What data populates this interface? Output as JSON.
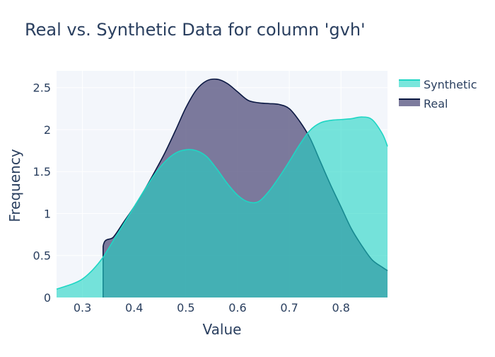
{
  "chart_data": {
    "type": "area",
    "title": "Real vs. Synthetic Data for column 'gvh'",
    "xlabel": "Value",
    "ylabel": "Frequency",
    "xlim": [
      0.25,
      0.89
    ],
    "ylim": [
      0,
      2.7
    ],
    "x_ticks": [
      0.3,
      0.4,
      0.5,
      0.6,
      0.7,
      0.8
    ],
    "x_tick_labels": [
      "0.3",
      "0.4",
      "0.5",
      "0.6",
      "0.7",
      "0.8"
    ],
    "y_ticks": [
      0,
      0.5,
      1,
      1.5,
      2,
      2.5
    ],
    "y_tick_labels": [
      "0",
      "0.5",
      "1",
      "1.5",
      "2",
      "2.5"
    ],
    "grid": true,
    "legend_position": "top-right",
    "series": [
      {
        "name": "Synthetic",
        "color": "#1fd6c4",
        "fill": "#1fd6c4",
        "x": [
          0.25,
          0.28,
          0.3,
          0.32,
          0.34,
          0.36,
          0.38,
          0.4,
          0.42,
          0.44,
          0.46,
          0.48,
          0.5,
          0.52,
          0.54,
          0.56,
          0.58,
          0.6,
          0.62,
          0.64,
          0.66,
          0.68,
          0.7,
          0.72,
          0.74,
          0.76,
          0.78,
          0.8,
          0.82,
          0.84,
          0.86,
          0.88,
          0.89
        ],
        "values": [
          0.1,
          0.16,
          0.22,
          0.33,
          0.48,
          0.68,
          0.88,
          1.08,
          1.28,
          1.47,
          1.62,
          1.72,
          1.76,
          1.75,
          1.68,
          1.53,
          1.36,
          1.22,
          1.14,
          1.14,
          1.26,
          1.43,
          1.62,
          1.82,
          1.99,
          2.08,
          2.11,
          2.12,
          2.13,
          2.15,
          2.12,
          1.95,
          1.8
        ]
      },
      {
        "name": "Real",
        "color": "#0d1a44",
        "fill": "#5d5a84",
        "x": [
          0.34,
          0.34,
          0.36,
          0.38,
          0.4,
          0.42,
          0.44,
          0.46,
          0.48,
          0.5,
          0.52,
          0.54,
          0.56,
          0.58,
          0.6,
          0.62,
          0.64,
          0.66,
          0.68,
          0.7,
          0.72,
          0.74,
          0.76,
          0.78,
          0.8,
          0.82,
          0.84,
          0.86,
          0.88,
          0.89
        ],
        "values": [
          0.0,
          0.61,
          0.72,
          0.9,
          1.08,
          1.28,
          1.5,
          1.73,
          1.99,
          2.26,
          2.47,
          2.58,
          2.6,
          2.55,
          2.45,
          2.35,
          2.32,
          2.31,
          2.3,
          2.25,
          2.1,
          1.9,
          1.62,
          1.34,
          1.08,
          0.82,
          0.62,
          0.45,
          0.36,
          0.32
        ]
      }
    ]
  }
}
